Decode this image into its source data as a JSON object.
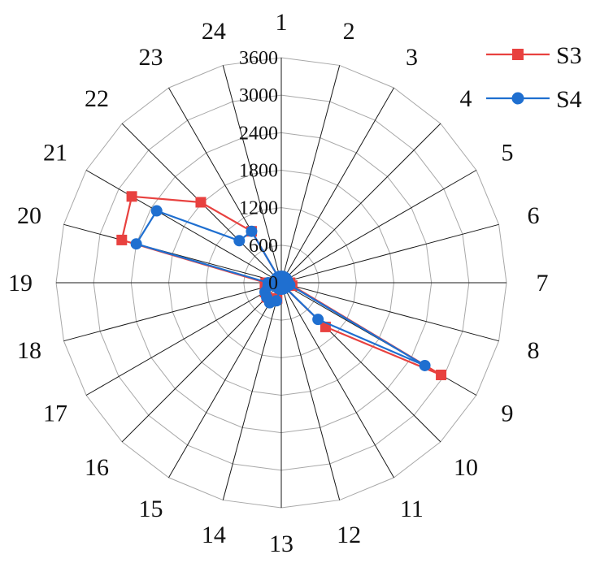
{
  "chart_data": {
    "type": "radar",
    "categories": [
      "1",
      "2",
      "3",
      "4",
      "5",
      "6",
      "7",
      "8",
      "9",
      "10",
      "11",
      "12",
      "13",
      "14",
      "15",
      "16",
      "17",
      "18",
      "19",
      "20",
      "21",
      "22",
      "23",
      "24"
    ],
    "radial_axis": {
      "min": 0,
      "max": 3600,
      "ticks": [
        0,
        600,
        1200,
        1800,
        2400,
        3000,
        3600
      ],
      "tick_labels": [
        "0",
        "600",
        "1200",
        "1800",
        "2400",
        "3000",
        "3600"
      ]
    },
    "grid": true,
    "legend_position": "top-right",
    "series": [
      {
        "name": "S3",
        "color": "#e8413f",
        "marker": "square",
        "values": [
          10,
          20,
          30,
          40,
          60,
          80,
          140,
          180,
          2950,
          1000,
          50,
          40,
          30,
          260,
          330,
          330,
          300,
          270,
          250,
          2640,
          2760,
          1820,
          950,
          20
        ]
      },
      {
        "name": "S4",
        "color": "#1f6fd0",
        "marker": "circle",
        "values": [
          10,
          20,
          30,
          40,
          60,
          80,
          110,
          140,
          2650,
          830,
          50,
          40,
          30,
          300,
          370,
          330,
          300,
          220,
          210,
          2400,
          2300,
          950,
          950,
          20
        ]
      }
    ]
  }
}
